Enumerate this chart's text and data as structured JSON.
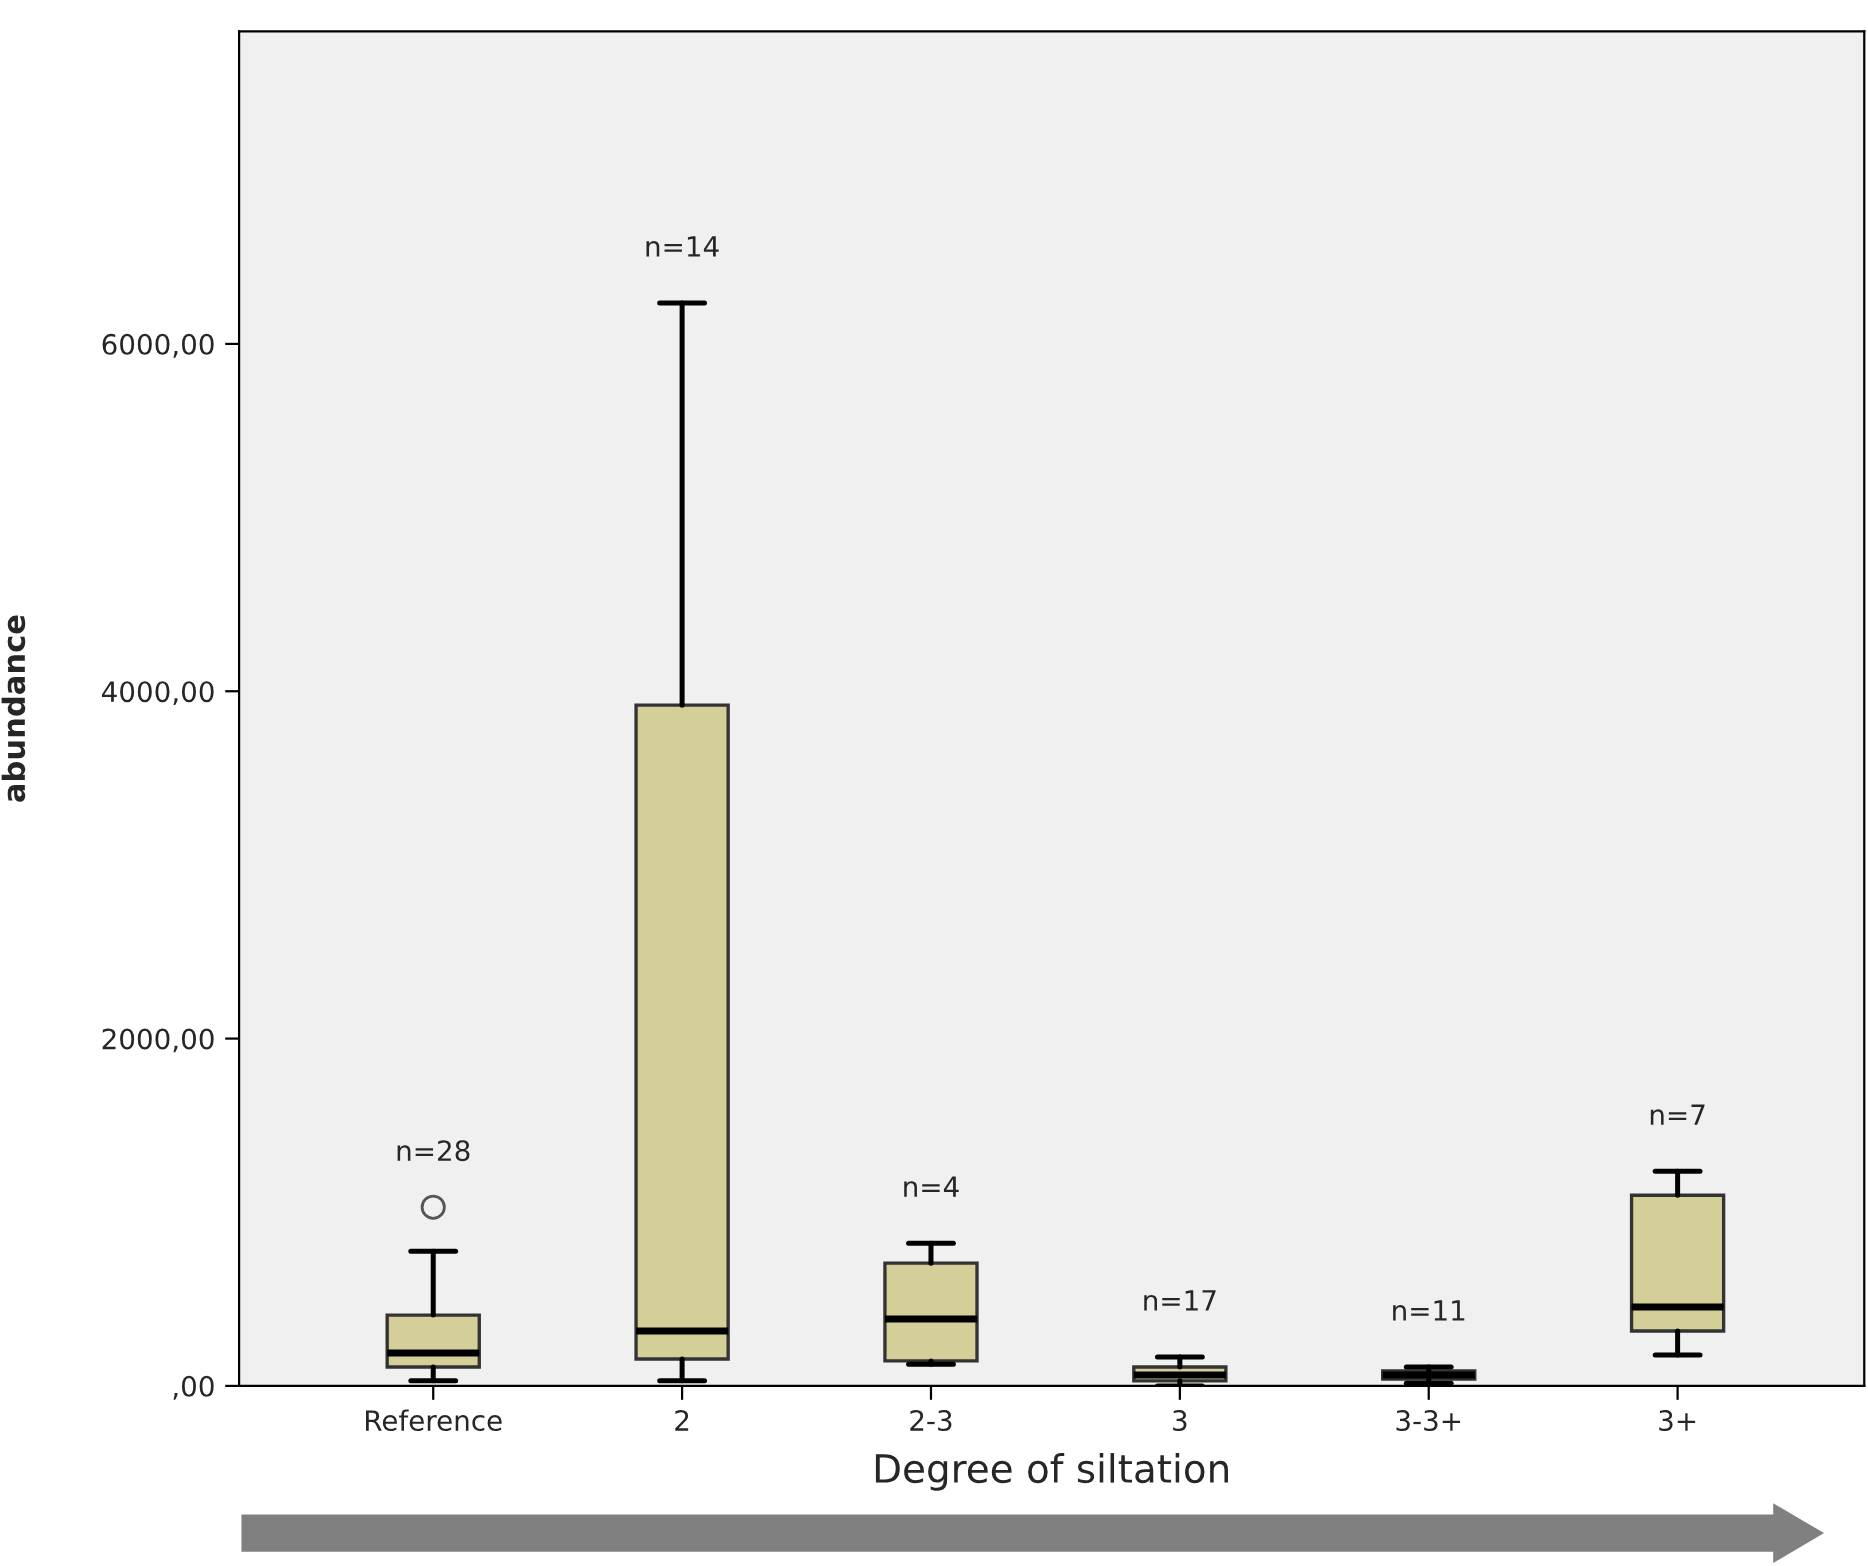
{
  "chart_data": {
    "type": "box",
    "xlabel": "Degree of siltation",
    "ylabel": "abundance",
    "categories": [
      "Reference",
      "2",
      "2-3",
      "3",
      "3-3+",
      "3+"
    ],
    "boxes": [
      {
        "low": 30,
        "q1": 109,
        "median": 190,
        "q3": 408,
        "high": 776,
        "outliers": [
          1029
        ]
      },
      {
        "low": 30,
        "q1": 155,
        "median": 316,
        "q3": 3920,
        "high": 6236
      },
      {
        "low": 125,
        "q1": 144,
        "median": 385,
        "q3": 707,
        "high": 822
      },
      {
        "low": 0,
        "q1": 29,
        "median": 63,
        "q3": 109,
        "high": 167
      },
      {
        "low": 15,
        "q1": 40,
        "median": 63,
        "q3": 86,
        "high": 109
      },
      {
        "low": 178,
        "q1": 316,
        "median": 454,
        "q3": 1098,
        "high": 1236
      }
    ],
    "color": "#d4cf98",
    "ylim": [
      0,
      7800
    ],
    "yticks": [
      {
        "value": 0,
        "label": ",00"
      },
      {
        "value": 2000,
        "label": "2000,00"
      },
      {
        "value": 4000,
        "label": "4000,00"
      },
      {
        "value": 6000,
        "label": "6000,00"
      }
    ],
    "grid": false,
    "annotations": [
      "n=28",
      "n=14",
      "n=4",
      "n=17",
      "n=11",
      "n=7"
    ]
  }
}
